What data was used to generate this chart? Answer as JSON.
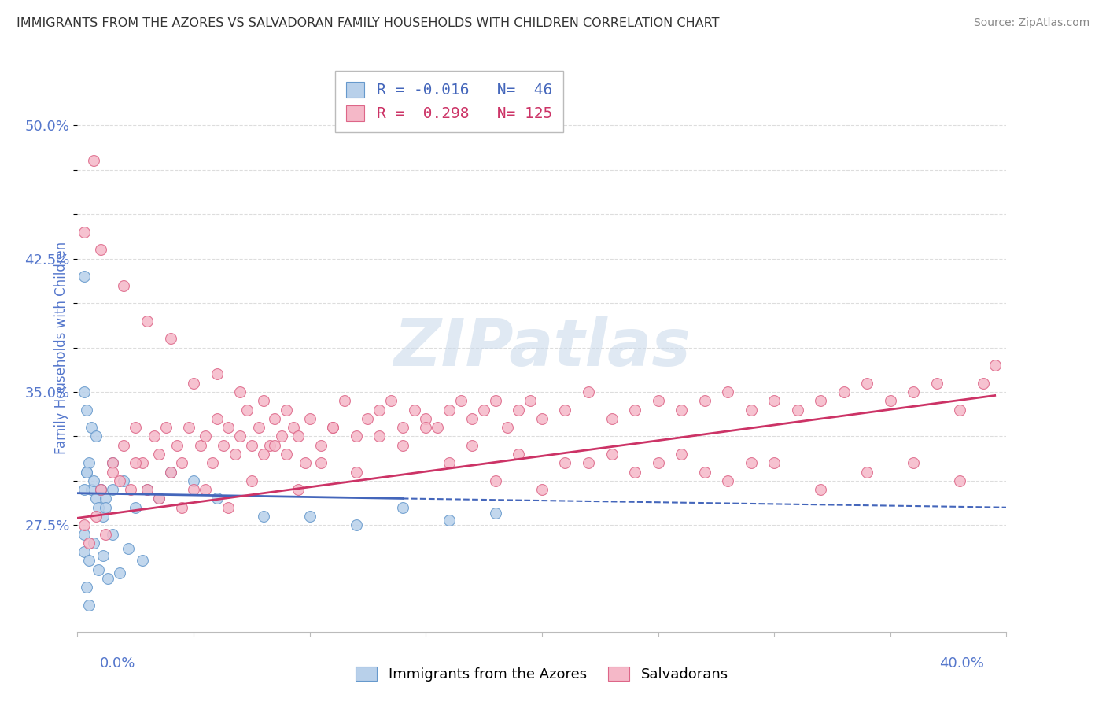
{
  "title": "IMMIGRANTS FROM THE AZORES VS SALVADORAN FAMILY HOUSEHOLDS WITH CHILDREN CORRELATION CHART",
  "source": "Source: ZipAtlas.com",
  "ylabel_label": "Family Households with Children",
  "legend_blue_r": "-0.016",
  "legend_blue_n": "46",
  "legend_pink_r": "0.298",
  "legend_pink_n": "125",
  "blue_face_color": "#b8d0ea",
  "pink_face_color": "#f5b8c8",
  "blue_edge_color": "#6699cc",
  "pink_edge_color": "#dd6688",
  "blue_line_color": "#4466bb",
  "pink_line_color": "#cc3366",
  "axis_label_color": "#5577cc",
  "grid_color": "#dddddd",
  "title_color": "#333333",
  "source_color": "#888888",
  "watermark_color": "#c8d8ea",
  "xlim_min": 0.0,
  "xlim_max": 0.4,
  "ylim_min": 0.215,
  "ylim_max": 0.535,
  "ytick_vals": [
    0.275,
    0.3,
    0.325,
    0.35,
    0.375,
    0.4,
    0.425,
    0.45,
    0.475,
    0.5
  ],
  "ytick_labels": [
    "27.5%",
    "",
    "",
    "35.0%",
    "",
    "",
    "42.5%",
    "",
    "",
    "50.0%"
  ],
  "blue_x": [
    0.003,
    0.004,
    0.005,
    0.006,
    0.007,
    0.008,
    0.009,
    0.01,
    0.011,
    0.012,
    0.003,
    0.004,
    0.012,
    0.015,
    0.02,
    0.025,
    0.03,
    0.035,
    0.04,
    0.05,
    0.003,
    0.005,
    0.007,
    0.009,
    0.011,
    0.013,
    0.015,
    0.018,
    0.022,
    0.028,
    0.003,
    0.004,
    0.005,
    0.06,
    0.08,
    0.1,
    0.12,
    0.14,
    0.16,
    0.18,
    0.003,
    0.004,
    0.006,
    0.008,
    0.01,
    0.015
  ],
  "blue_y": [
    0.415,
    0.305,
    0.31,
    0.295,
    0.3,
    0.29,
    0.285,
    0.295,
    0.28,
    0.29,
    0.295,
    0.305,
    0.285,
    0.295,
    0.3,
    0.285,
    0.295,
    0.29,
    0.305,
    0.3,
    0.26,
    0.255,
    0.265,
    0.25,
    0.258,
    0.245,
    0.27,
    0.248,
    0.262,
    0.255,
    0.27,
    0.24,
    0.23,
    0.29,
    0.28,
    0.28,
    0.275,
    0.285,
    0.278,
    0.282,
    0.35,
    0.34,
    0.33,
    0.325,
    0.295,
    0.31
  ],
  "pink_x": [
    0.003,
    0.005,
    0.008,
    0.01,
    0.012,
    0.015,
    0.018,
    0.02,
    0.023,
    0.025,
    0.028,
    0.03,
    0.033,
    0.035,
    0.038,
    0.04,
    0.043,
    0.045,
    0.048,
    0.05,
    0.053,
    0.055,
    0.058,
    0.06,
    0.063,
    0.065,
    0.068,
    0.07,
    0.073,
    0.075,
    0.078,
    0.08,
    0.083,
    0.085,
    0.088,
    0.09,
    0.093,
    0.095,
    0.098,
    0.1,
    0.105,
    0.11,
    0.115,
    0.12,
    0.125,
    0.13,
    0.135,
    0.14,
    0.145,
    0.15,
    0.155,
    0.16,
    0.165,
    0.17,
    0.175,
    0.18,
    0.185,
    0.19,
    0.195,
    0.2,
    0.21,
    0.22,
    0.23,
    0.24,
    0.25,
    0.26,
    0.27,
    0.28,
    0.29,
    0.3,
    0.31,
    0.32,
    0.33,
    0.34,
    0.35,
    0.36,
    0.37,
    0.38,
    0.39,
    0.395,
    0.007,
    0.015,
    0.025,
    0.035,
    0.045,
    0.055,
    0.065,
    0.075,
    0.085,
    0.095,
    0.105,
    0.12,
    0.14,
    0.16,
    0.18,
    0.2,
    0.22,
    0.24,
    0.26,
    0.28,
    0.3,
    0.32,
    0.34,
    0.36,
    0.38,
    0.003,
    0.01,
    0.02,
    0.03,
    0.04,
    0.05,
    0.06,
    0.07,
    0.08,
    0.09,
    0.11,
    0.13,
    0.15,
    0.17,
    0.19,
    0.21,
    0.23,
    0.25,
    0.27,
    0.29
  ],
  "pink_y": [
    0.275,
    0.265,
    0.28,
    0.295,
    0.27,
    0.31,
    0.3,
    0.32,
    0.295,
    0.33,
    0.31,
    0.295,
    0.325,
    0.315,
    0.33,
    0.305,
    0.32,
    0.31,
    0.33,
    0.295,
    0.32,
    0.325,
    0.31,
    0.335,
    0.32,
    0.33,
    0.315,
    0.325,
    0.34,
    0.32,
    0.33,
    0.315,
    0.32,
    0.335,
    0.325,
    0.315,
    0.33,
    0.325,
    0.31,
    0.335,
    0.32,
    0.33,
    0.345,
    0.325,
    0.335,
    0.34,
    0.345,
    0.33,
    0.34,
    0.335,
    0.33,
    0.34,
    0.345,
    0.335,
    0.34,
    0.345,
    0.33,
    0.34,
    0.345,
    0.335,
    0.34,
    0.35,
    0.335,
    0.34,
    0.345,
    0.34,
    0.345,
    0.35,
    0.34,
    0.345,
    0.34,
    0.345,
    0.35,
    0.355,
    0.345,
    0.35,
    0.355,
    0.34,
    0.355,
    0.365,
    0.48,
    0.305,
    0.31,
    0.29,
    0.285,
    0.295,
    0.285,
    0.3,
    0.32,
    0.295,
    0.31,
    0.305,
    0.32,
    0.31,
    0.3,
    0.295,
    0.31,
    0.305,
    0.315,
    0.3,
    0.31,
    0.295,
    0.305,
    0.31,
    0.3,
    0.44,
    0.43,
    0.41,
    0.39,
    0.38,
    0.355,
    0.36,
    0.35,
    0.345,
    0.34,
    0.33,
    0.325,
    0.33,
    0.32,
    0.315,
    0.31,
    0.315,
    0.31,
    0.305,
    0.31
  ],
  "blue_line_x0": 0.0,
  "blue_line_x_solid_end": 0.14,
  "blue_line_x1": 0.4,
  "blue_line_y_at_0": 0.293,
  "blue_line_y_at_solid_end": 0.29,
  "blue_line_y_at_end": 0.285,
  "pink_line_x0": 0.0,
  "pink_line_x1": 0.395,
  "pink_line_y_at_0": 0.279,
  "pink_line_y_at_end": 0.348
}
